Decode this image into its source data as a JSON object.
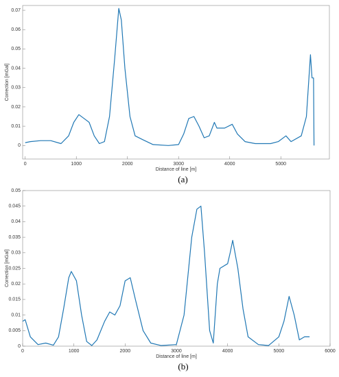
{
  "chart_data": [
    {
      "type": "line",
      "caption": "(a)",
      "xlabel": "Distance of line [m]",
      "ylabel": "Correction [mGal]",
      "color": "#1f77b4",
      "x": [
        0,
        100,
        300,
        500,
        700,
        850,
        950,
        1050,
        1150,
        1250,
        1350,
        1450,
        1550,
        1650,
        1750,
        1830,
        1880,
        1950,
        2050,
        2150,
        2300,
        2500,
        2800,
        3000,
        3100,
        3200,
        3300,
        3400,
        3500,
        3600,
        3700,
        3750,
        3900,
        4050,
        4150,
        4300,
        4500,
        4800,
        4950,
        5100,
        5200,
        5400,
        5500,
        5580,
        5610,
        5640,
        5650
      ],
      "values": [
        0.0015,
        0.002,
        0.0025,
        0.0025,
        0.001,
        0.005,
        0.012,
        0.016,
        0.014,
        0.012,
        0.005,
        0.001,
        0.002,
        0.015,
        0.045,
        0.071,
        0.065,
        0.04,
        0.015,
        0.005,
        0.003,
        0.0005,
        0,
        0.0005,
        0.006,
        0.014,
        0.015,
        0.01,
        0.004,
        0.005,
        0.012,
        0.009,
        0.009,
        0.011,
        0.006,
        0.002,
        0.001,
        0.001,
        0.002,
        0.005,
        0.002,
        0.005,
        0.015,
        0.047,
        0.035,
        0.035,
        0
      ],
      "xlim": [
        -50,
        5950
      ],
      "xticks": [
        0,
        1000,
        2000,
        3000,
        4000,
        5000
      ],
      "ylim": [
        -0.007,
        0.0725
      ],
      "yticks": [
        0,
        0.01,
        0.02,
        0.03,
        0.04,
        0.05,
        0.06,
        0.07
      ]
    },
    {
      "type": "line",
      "caption": "(b)",
      "xlabel": "Distance of line [m]",
      "ylabel": "Correction [mGal]",
      "color": "#1f77b4",
      "x": [
        0,
        50,
        150,
        300,
        450,
        600,
        700,
        800,
        900,
        950,
        1050,
        1150,
        1250,
        1350,
        1450,
        1600,
        1700,
        1800,
        1900,
        2000,
        2100,
        2200,
        2350,
        2500,
        2700,
        3000,
        3150,
        3300,
        3400,
        3480,
        3550,
        3650,
        3720,
        3800,
        3850,
        4000,
        4050,
        4100,
        4200,
        4300,
        4400,
        4600,
        4800,
        5000,
        5100,
        5200,
        5300,
        5400,
        5500,
        5600
      ],
      "values": [
        0.008,
        0.0085,
        0.003,
        0.0005,
        0.001,
        0.0003,
        0.003,
        0.012,
        0.022,
        0.024,
        0.021,
        0.01,
        0.0015,
        0.0002,
        0.002,
        0.008,
        0.011,
        0.01,
        0.013,
        0.021,
        0.022,
        0.015,
        0.005,
        0.001,
        0.0002,
        0.0005,
        0.01,
        0.035,
        0.044,
        0.045,
        0.03,
        0.005,
        0.001,
        0.02,
        0.025,
        0.0265,
        0.03,
        0.034,
        0.025,
        0.012,
        0.003,
        0.0005,
        0.0002,
        0.003,
        0.008,
        0.016,
        0.01,
        0.002,
        0.003,
        0.003
      ],
      "xlim": [
        0,
        6000
      ],
      "xticks": [
        0,
        1000,
        2000,
        3000,
        4000,
        5000,
        6000
      ],
      "ylim": [
        0,
        0.05
      ],
      "yticks": [
        0,
        0.005,
        0.01,
        0.015,
        0.02,
        0.025,
        0.03,
        0.035,
        0.04,
        0.045,
        0.05
      ]
    }
  ]
}
